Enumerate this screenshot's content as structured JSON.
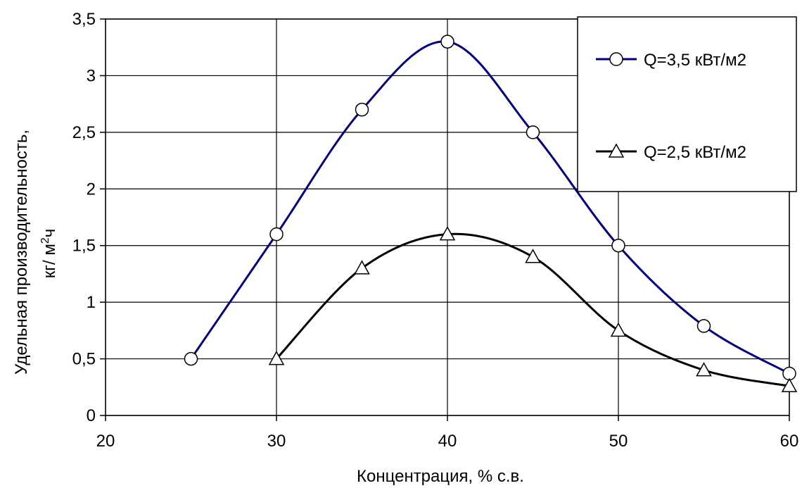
{
  "chart_data": {
    "type": "line",
    "xlabel": "Концентрация, % с.в.",
    "ylabel_line1": "Удельная производительность,",
    "ylabel_line2_pre": "кг/ м",
    "ylabel_line2_sup": "2",
    "ylabel_line2_post": "ч",
    "xlim": [
      20,
      60
    ],
    "ylim": [
      0,
      3.5
    ],
    "xticks": [
      20,
      30,
      40,
      50,
      60
    ],
    "yticks": [
      0,
      0.5,
      1,
      1.5,
      2,
      2.5,
      3,
      3.5
    ],
    "xtick_labels": [
      "20",
      "30",
      "40",
      "50",
      "60"
    ],
    "ytick_labels": [
      "0",
      "0,5",
      "1",
      "1,5",
      "2",
      "2,5",
      "3",
      "3,5"
    ],
    "grid": true,
    "legend_position": "top-right",
    "series": [
      {
        "name": "Q=3,5 кВт/м2",
        "color": "#000080",
        "marker": "circle",
        "x": [
          25,
          30,
          35,
          40,
          45,
          50,
          55,
          60
        ],
        "y": [
          0.5,
          1.6,
          2.7,
          3.3,
          2.5,
          1.5,
          0.79,
          0.37
        ]
      },
      {
        "name": "Q=2,5 кВт/м2",
        "color": "#000000",
        "marker": "triangle",
        "x": [
          30,
          35,
          40,
          45,
          50,
          55,
          60
        ],
        "y": [
          0.5,
          1.3,
          1.6,
          1.4,
          0.75,
          0.4,
          0.26
        ]
      }
    ]
  }
}
